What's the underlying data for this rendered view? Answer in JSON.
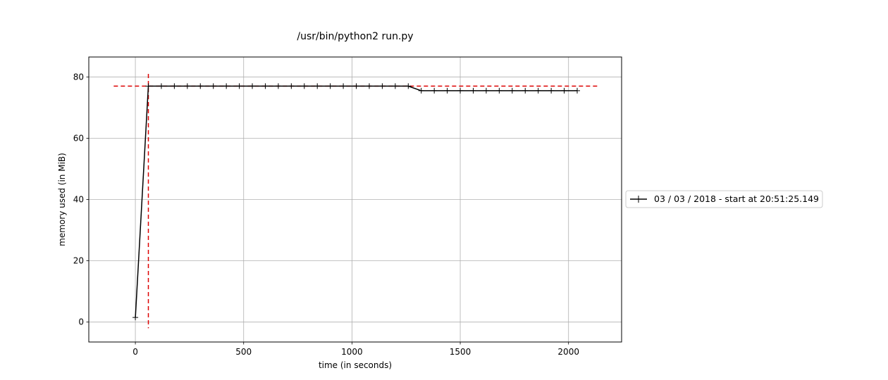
{
  "chart_data": {
    "type": "line",
    "title": "/usr/bin/python2 run.py",
    "xlabel": "time (in seconds)",
    "ylabel": "memory used (in MiB)",
    "xlim": [
      -215,
      2245
    ],
    "ylim": [
      -6.5,
      86.5
    ],
    "xticks": [
      0,
      500,
      1000,
      1500,
      2000
    ],
    "yticks": [
      0,
      20,
      40,
      60,
      80
    ],
    "grid": true,
    "legend_position": "right",
    "series": [
      {
        "name": "03 / 03 / 2018 - start at 20:51:25.149",
        "color": "#000000",
        "marker": "+",
        "x": [
          0,
          60,
          120,
          180,
          240,
          300,
          360,
          420,
          480,
          540,
          600,
          660,
          720,
          780,
          840,
          900,
          960,
          1020,
          1080,
          1140,
          1200,
          1260,
          1320,
          1380,
          1440,
          1500,
          1560,
          1620,
          1680,
          1740,
          1800,
          1860,
          1920,
          1980,
          2040
        ],
        "y": [
          1.5,
          77.0,
          77.0,
          77.0,
          77.0,
          77.0,
          77.0,
          77.0,
          77.0,
          77.0,
          77.0,
          77.0,
          77.0,
          77.0,
          77.0,
          77.0,
          77.0,
          77.0,
          77.0,
          77.0,
          77.0,
          77.0,
          75.5,
          75.5,
          75.5,
          75.5,
          75.5,
          75.5,
          75.5,
          75.5,
          75.5,
          75.5,
          75.5,
          75.5,
          75.5
        ]
      }
    ],
    "annotations": {
      "color": "#dd0000",
      "max_memory_y": 77.0,
      "max_memory_x_range": [
        -100,
        2145
      ],
      "max_memory_time_x": 60,
      "max_memory_time_y_range": [
        -2,
        81
      ]
    }
  }
}
